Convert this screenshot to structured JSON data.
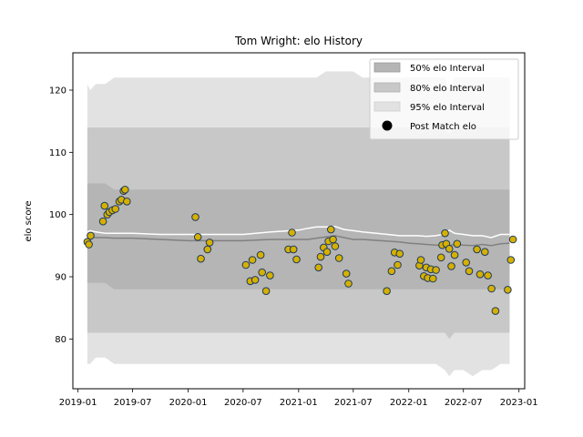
{
  "chart_data": {
    "type": "scatter",
    "title": "Tom Wright: elo History",
    "xlabel": "",
    "ylabel": "elo score",
    "x_ticks": [
      "2019-01",
      "2019-07",
      "2020-01",
      "2020-07",
      "2021-01",
      "2021-07",
      "2022-01",
      "2022-07",
      "2023-01"
    ],
    "y_ticks": [
      80,
      90,
      100,
      110,
      120
    ],
    "xlim": [
      "2018-12-15",
      "2023-01-20"
    ],
    "ylim": [
      72,
      126
    ],
    "grid": false,
    "legend_position": "top-right",
    "legend": {
      "interval_50": "50% elo Interval",
      "interval_80": "80% elo Interval",
      "interval_95": "95% elo Interval",
      "points": "Post Match elo"
    },
    "colors": {
      "band_50": "#b5b5b5",
      "band_80": "#c8c8c8",
      "band_95": "#e2e2e2",
      "median_line": "#808080",
      "mean_line": "#ffffff",
      "point_fill": "#d6b000",
      "point_edge": "#1f3b5a",
      "point_edge_alt": "#f2d000"
    },
    "bands": {
      "x": [
        "2019-02-01",
        "2019-02-10",
        "2019-03-01",
        "2019-04-01",
        "2019-05-01",
        "2019-06-01",
        "2019-07-01",
        "2019-10-01",
        "2020-01-01",
        "2020-04-01",
        "2020-07-01",
        "2020-10-01",
        "2021-01-01",
        "2021-02-01",
        "2021-03-01",
        "2021-04-01",
        "2021-05-01",
        "2021-06-01",
        "2021-07-01",
        "2021-08-01",
        "2021-10-01",
        "2021-12-01",
        "2022-01-01",
        "2022-02-01",
        "2022-03-01",
        "2022-04-01",
        "2022-05-01",
        "2022-05-15",
        "2022-06-01",
        "2022-07-01",
        "2022-08-01",
        "2022-09-01",
        "2022-10-01",
        "2022-11-01",
        "2022-12-01"
      ],
      "p95_high": [
        121,
        120,
        121,
        121,
        122,
        122,
        122,
        122,
        122,
        122,
        122,
        122,
        122,
        122,
        122,
        123,
        123,
        123,
        123,
        122,
        122,
        122,
        122,
        122,
        122,
        122,
        122,
        120,
        122,
        122,
        122,
        122,
        122,
        122,
        122
      ],
      "p95_low": [
        76,
        76,
        77,
        77,
        76,
        76,
        76,
        76,
        76,
        76,
        76,
        76,
        76,
        76,
        76,
        76,
        76,
        76,
        76,
        76,
        76,
        76,
        76,
        76,
        76,
        76,
        75,
        74,
        75,
        75,
        74,
        75,
        75,
        76,
        76
      ],
      "p80_high": [
        114,
        114,
        114,
        114,
        114,
        114,
        114,
        114,
        114,
        114,
        114,
        114,
        114,
        114,
        114,
        114,
        114,
        114,
        114,
        114,
        114,
        114,
        114,
        114,
        114,
        114,
        114,
        113,
        114,
        114,
        114,
        114,
        114,
        114,
        114
      ],
      "p80_low": [
        81,
        81,
        81,
        81,
        81,
        81,
        81,
        81,
        81,
        81,
        81,
        81,
        81,
        81,
        81,
        81,
        81,
        81,
        81,
        81,
        81,
        81,
        81,
        81,
        81,
        81,
        81,
        80,
        81,
        81,
        81,
        81,
        81,
        81,
        81
      ],
      "p50_high": [
        105,
        105,
        105,
        105,
        104,
        104,
        104,
        104,
        104,
        104,
        104,
        104,
        104,
        104,
        104,
        104,
        104,
        104,
        104,
        104,
        104,
        104,
        104,
        104,
        104,
        104,
        104,
        104,
        104,
        104,
        104,
        104,
        104,
        104,
        104
      ],
      "p50_low": [
        89,
        89,
        89,
        89,
        88,
        88,
        88,
        88,
        88,
        88,
        88,
        88,
        88,
        88,
        88,
        88,
        88,
        88,
        88,
        88,
        88,
        88,
        88,
        88,
        88,
        88,
        88,
        88,
        88,
        88,
        88,
        88,
        88,
        88,
        88
      ],
      "median": [
        96.5,
        96.5,
        96.3,
        96.3,
        96.2,
        96.2,
        96.2,
        96.0,
        95.8,
        95.8,
        95.8,
        96.0,
        96.0,
        96.0,
        96.2,
        96.4,
        96.6,
        96.3,
        96.0,
        96.0,
        95.8,
        95.6,
        95.4,
        95.3,
        95.2,
        95.1,
        95.0,
        95.0,
        95.2,
        95.1,
        95.0,
        95.2,
        95.0,
        95.3,
        95.4
      ],
      "mean": [
        97.2,
        97.4,
        97.2,
        97.0,
        97.0,
        97.0,
        97.0,
        96.8,
        96.8,
        96.8,
        96.8,
        97.2,
        97.5,
        97.8,
        98.0,
        98.0,
        98.1,
        97.6,
        97.4,
        97.2,
        96.9,
        96.6,
        96.6,
        96.6,
        96.5,
        96.6,
        96.9,
        97.5,
        97.0,
        96.8,
        96.6,
        96.6,
        96.3,
        96.8,
        96.8
      ]
    },
    "points": [
      {
        "x": "2019-02-01",
        "y": 95.6
      },
      {
        "x": "2019-02-06",
        "y": 95.2
      },
      {
        "x": "2019-02-12",
        "y": 96.6
      },
      {
        "x": "2019-03-25",
        "y": 98.9
      },
      {
        "x": "2019-03-30",
        "y": 101.4
      },
      {
        "x": "2019-04-08",
        "y": 100.0
      },
      {
        "x": "2019-04-15",
        "y": 100.4
      },
      {
        "x": "2019-04-25",
        "y": 100.7
      },
      {
        "x": "2019-05-05",
        "y": 100.9
      },
      {
        "x": "2019-05-18",
        "y": 102.1
      },
      {
        "x": "2019-05-25",
        "y": 102.4
      },
      {
        "x": "2019-06-01",
        "y": 103.8
      },
      {
        "x": "2019-06-06",
        "y": 104.0
      },
      {
        "x": "2019-06-12",
        "y": 102.1
      },
      {
        "x": "2020-01-25",
        "y": 99.6
      },
      {
        "x": "2020-02-02",
        "y": 96.4
      },
      {
        "x": "2020-02-12",
        "y": 92.9
      },
      {
        "x": "2020-03-05",
        "y": 94.4
      },
      {
        "x": "2020-03-12",
        "y": 95.5
      },
      {
        "x": "2020-07-10",
        "y": 91.9
      },
      {
        "x": "2020-07-25",
        "y": 89.3
      },
      {
        "x": "2020-08-01",
        "y": 92.7
      },
      {
        "x": "2020-08-10",
        "y": 89.5
      },
      {
        "x": "2020-08-28",
        "y": 93.5
      },
      {
        "x": "2020-09-02",
        "y": 90.7
      },
      {
        "x": "2020-09-15",
        "y": 87.7
      },
      {
        "x": "2020-09-28",
        "y": 90.2
      },
      {
        "x": "2020-11-28",
        "y": 94.4
      },
      {
        "x": "2020-12-10",
        "y": 97.1
      },
      {
        "x": "2020-12-15",
        "y": 94.4
      },
      {
        "x": "2020-12-25",
        "y": 92.8
      },
      {
        "x": "2021-03-08",
        "y": 91.5
      },
      {
        "x": "2021-03-15",
        "y": 93.2
      },
      {
        "x": "2021-03-25",
        "y": 94.7
      },
      {
        "x": "2021-04-05",
        "y": 94.0
      },
      {
        "x": "2021-04-10",
        "y": 95.7
      },
      {
        "x": "2021-04-18",
        "y": 97.6
      },
      {
        "x": "2021-04-25",
        "y": 96.0
      },
      {
        "x": "2021-05-02",
        "y": 94.9
      },
      {
        "x": "2021-05-15",
        "y": 93.0
      },
      {
        "x": "2021-06-08",
        "y": 90.5
      },
      {
        "x": "2021-06-15",
        "y": 88.9
      },
      {
        "x": "2021-10-20",
        "y": 87.7
      },
      {
        "x": "2021-11-05",
        "y": 90.9
      },
      {
        "x": "2021-11-15",
        "y": 93.9
      },
      {
        "x": "2021-11-25",
        "y": 91.9
      },
      {
        "x": "2021-12-02",
        "y": 93.7
      },
      {
        "x": "2022-02-05",
        "y": 91.8
      },
      {
        "x": "2022-02-10",
        "y": 92.7
      },
      {
        "x": "2022-02-20",
        "y": 90.1
      },
      {
        "x": "2022-02-28",
        "y": 91.5
      },
      {
        "x": "2022-03-05",
        "y": 89.8
      },
      {
        "x": "2022-03-15",
        "y": 91.2
      },
      {
        "x": "2022-03-22",
        "y": 89.7
      },
      {
        "x": "2022-04-01",
        "y": 91.1
      },
      {
        "x": "2022-04-18",
        "y": 93.1
      },
      {
        "x": "2022-04-22",
        "y": 95.1
      },
      {
        "x": "2022-05-01",
        "y": 97.0
      },
      {
        "x": "2022-05-05",
        "y": 95.3
      },
      {
        "x": "2022-05-15",
        "y": 94.5
      },
      {
        "x": "2022-05-22",
        "y": 91.7
      },
      {
        "x": "2022-06-02",
        "y": 93.5
      },
      {
        "x": "2022-06-10",
        "y": 95.3
      },
      {
        "x": "2022-07-10",
        "y": 92.3
      },
      {
        "x": "2022-07-20",
        "y": 90.9
      },
      {
        "x": "2022-08-15",
        "y": 94.4
      },
      {
        "x": "2022-08-25",
        "y": 90.4
      },
      {
        "x": "2022-09-10",
        "y": 94.0
      },
      {
        "x": "2022-09-20",
        "y": 90.2
      },
      {
        "x": "2022-10-02",
        "y": 88.1
      },
      {
        "x": "2022-10-15",
        "y": 84.5
      },
      {
        "x": "2022-11-25",
        "y": 87.9
      },
      {
        "x": "2022-12-05",
        "y": 92.7
      },
      {
        "x": "2022-12-12",
        "y": 96.0
      }
    ]
  }
}
